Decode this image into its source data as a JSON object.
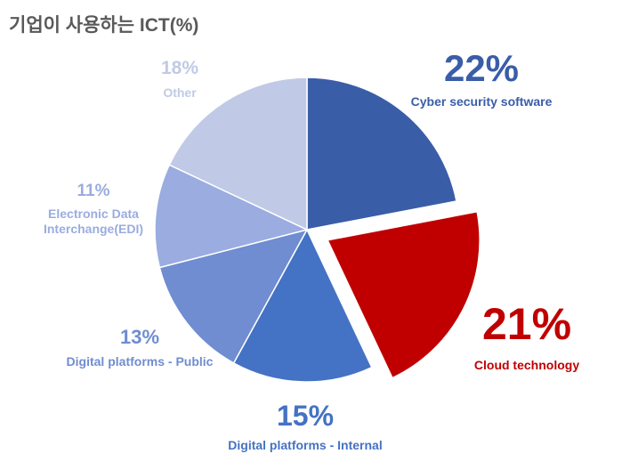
{
  "chart_data": {
    "type": "pie",
    "title": "기업이 사용하는 ICT(%)",
    "categories": [
      "Cyber security software",
      "Cloud technology",
      "Digital platforms - Internal",
      "Digital platforms - Public",
      "Electronic Data Interchange(EDI)",
      "Other"
    ],
    "values": [
      22,
      21,
      15,
      13,
      11,
      18
    ],
    "value_labels": [
      "22%",
      "21%",
      "15%",
      "13%",
      "11%",
      "18%"
    ],
    "colors": [
      "#3a5da8",
      "#c00000",
      "#4472c4",
      "#6f8dd0",
      "#9aace0",
      "#c0cae6"
    ],
    "explode_index": 1
  }
}
